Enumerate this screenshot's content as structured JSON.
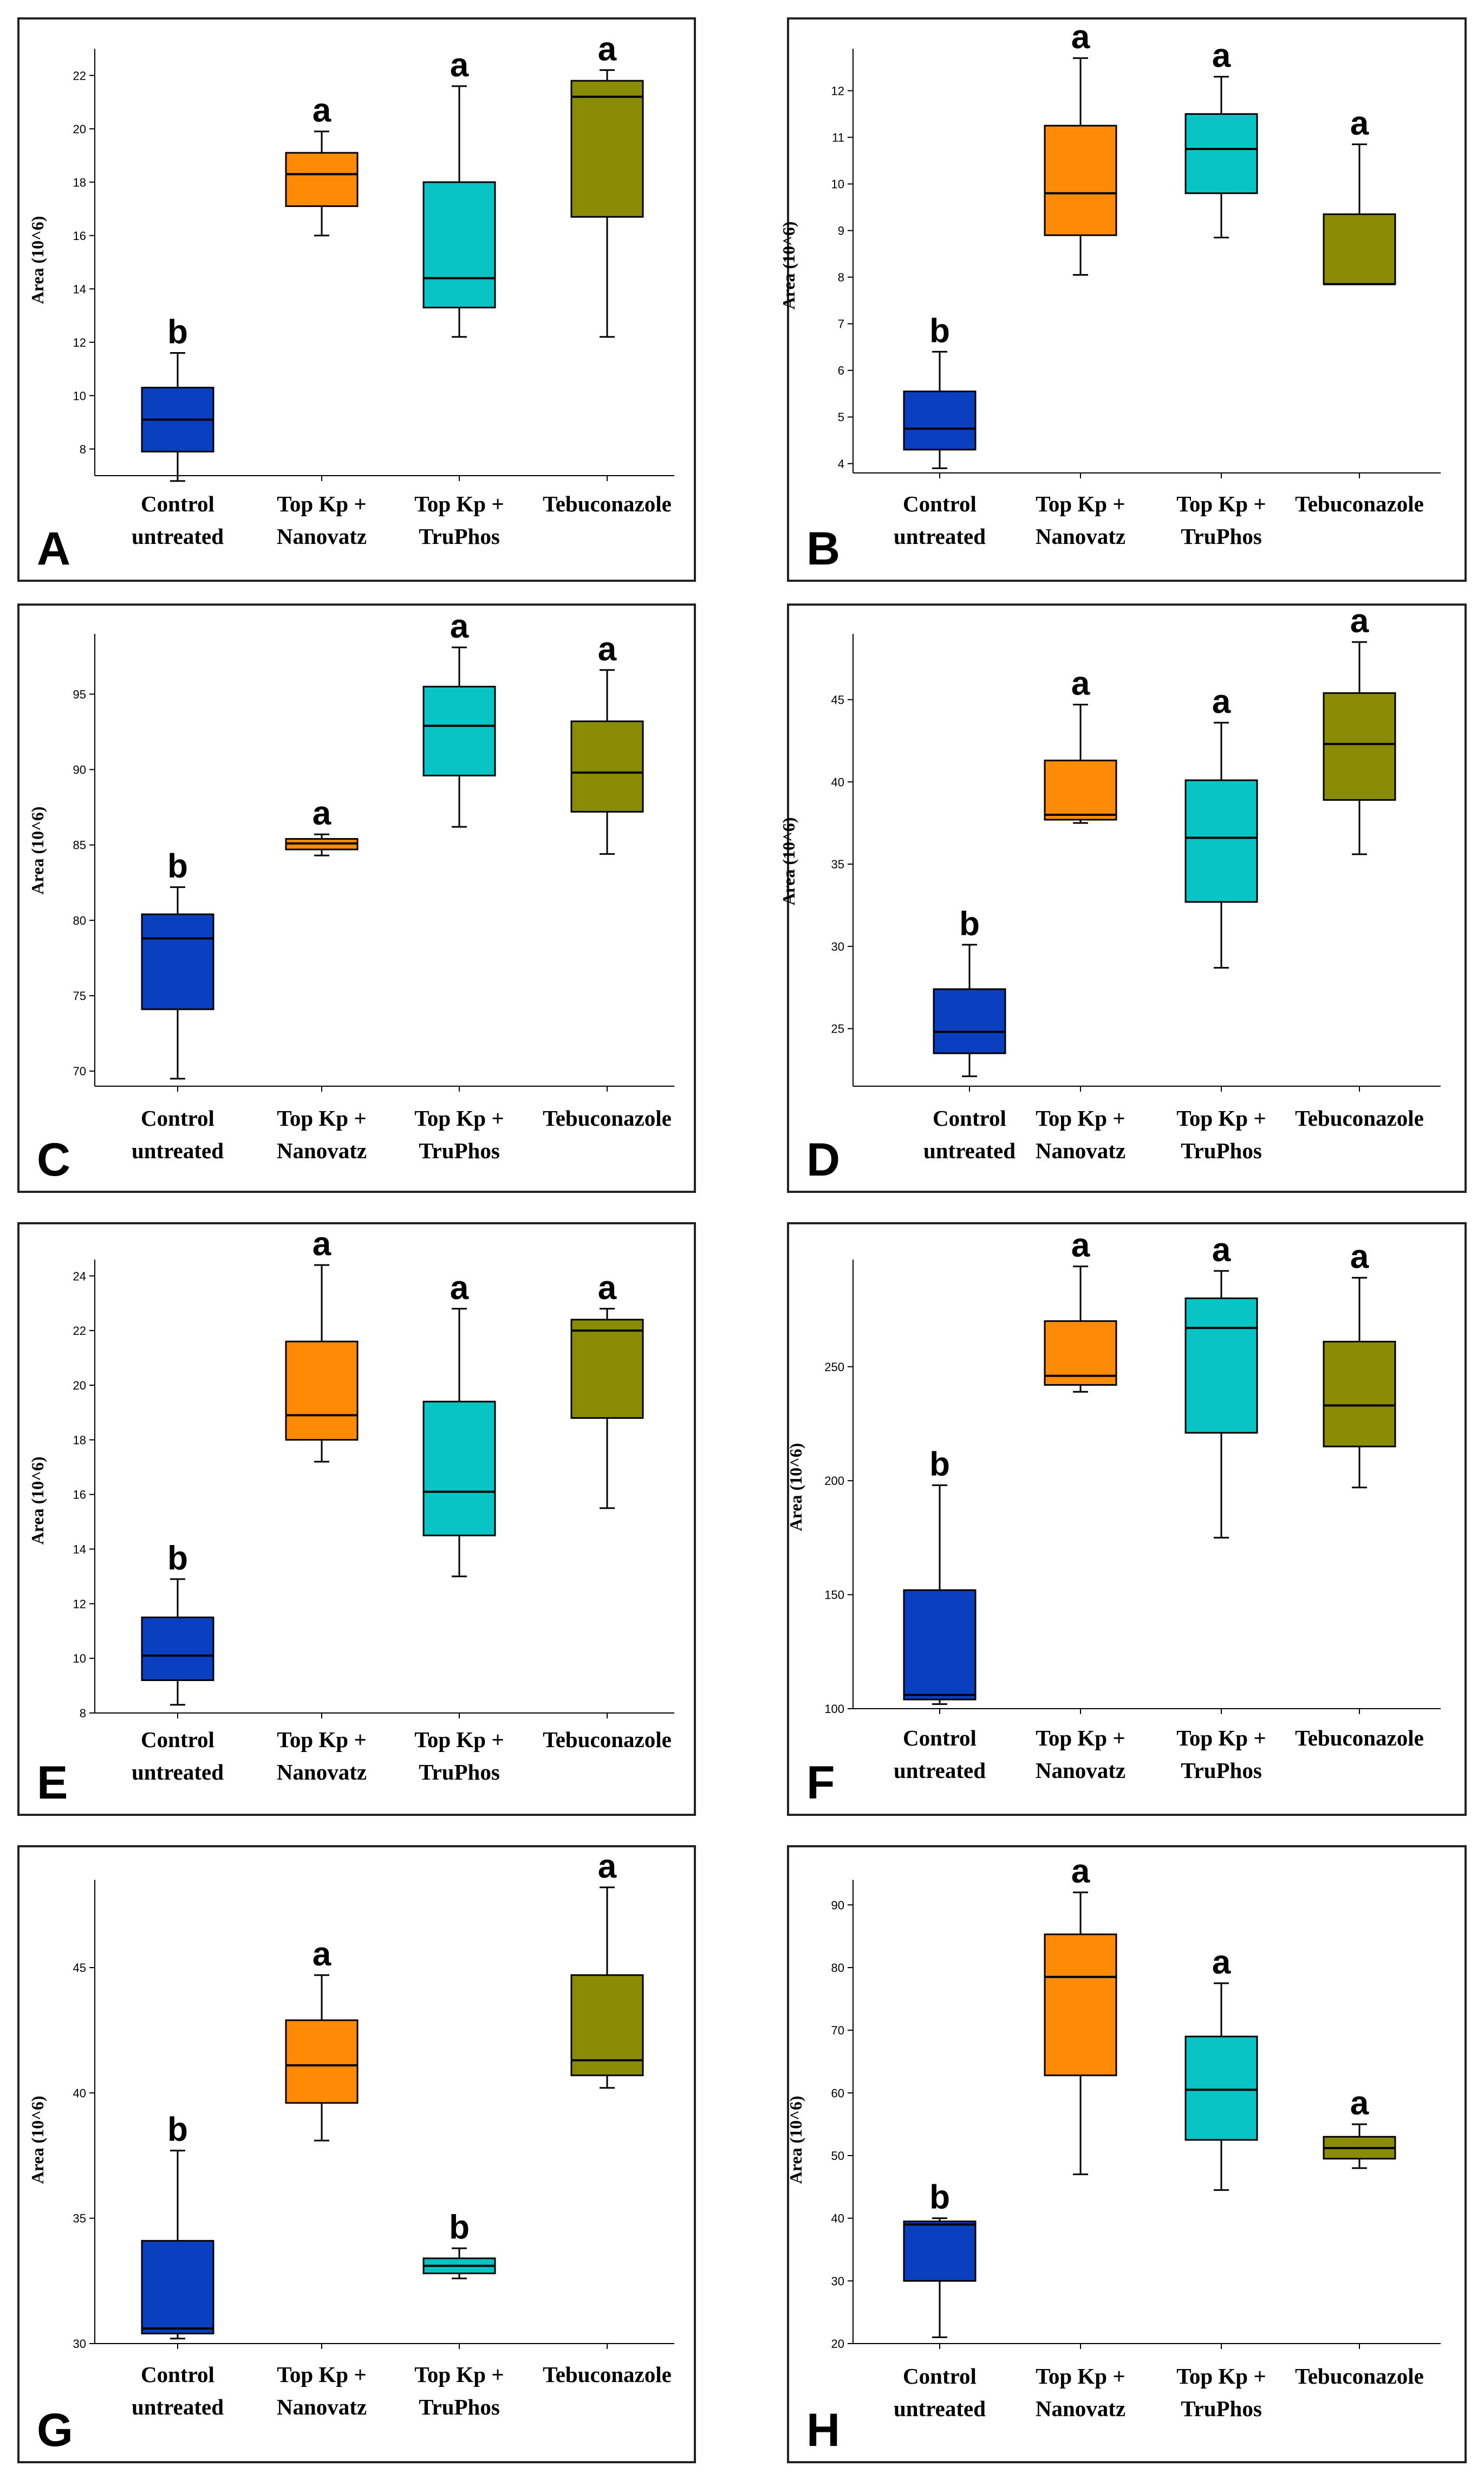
{
  "figure": {
    "categories": [
      {
        "line1": "Control",
        "line2": "untreated"
      },
      {
        "line1": "Top Kp +",
        "line2": "Nanovatz"
      },
      {
        "line1": "Top Kp +",
        "line2": "TruPhos"
      },
      {
        "line1": "Tebuconazole",
        "line2": ""
      }
    ],
    "colors": [
      "#0a3fbf",
      "#ff8a05",
      "#08c4c4",
      "#8a8c06"
    ]
  },
  "chart_data": [
    {
      "panel": "A",
      "type": "box",
      "ylabel": "Area (10^6)",
      "ylim": [
        7,
        23
      ],
      "yticks": [
        8,
        10,
        12,
        14,
        16,
        18,
        20,
        22
      ],
      "boxes": [
        {
          "min": 6.8,
          "q1": 7.9,
          "median": 9.1,
          "q3": 10.3,
          "max": 11.6,
          "letter": "b"
        },
        {
          "min": 16.0,
          "q1": 17.1,
          "median": 18.3,
          "q3": 19.1,
          "max": 19.9,
          "letter": "a"
        },
        {
          "min": 12.2,
          "q1": 13.3,
          "median": 14.4,
          "q3": 18.0,
          "max": 21.6,
          "letter": "a"
        },
        {
          "min": 12.2,
          "q1": 16.7,
          "median": 21.2,
          "q3": 21.8,
          "max": 22.2,
          "letter": "a"
        }
      ]
    },
    {
      "panel": "B",
      "type": "box",
      "ylabel": "Area (10^6)",
      "ylim": [
        3.8,
        12.9
      ],
      "yticks": [
        4,
        5,
        6,
        7,
        8,
        9,
        10,
        11,
        12
      ],
      "boxes": [
        {
          "min": 3.9,
          "q1": 4.3,
          "median": 4.75,
          "q3": 5.55,
          "max": 6.4,
          "letter": "b"
        },
        {
          "min": 8.05,
          "q1": 8.9,
          "median": 9.8,
          "q3": 11.25,
          "max": 12.7,
          "letter": "a"
        },
        {
          "min": 8.85,
          "q1": 9.8,
          "median": 10.75,
          "q3": 11.5,
          "max": 12.3,
          "letter": "a"
        },
        {
          "min": 7.85,
          "q1": 7.85,
          "median": 7.85,
          "q3": 9.35,
          "max": 10.85,
          "letter": "a"
        }
      ]
    },
    {
      "panel": "C",
      "type": "box",
      "ylabel": "Area (10^6)",
      "ylim": [
        69,
        99
      ],
      "yticks": [
        70,
        75,
        80,
        85,
        90,
        95
      ],
      "boxes": [
        {
          "min": 69.5,
          "q1": 74.1,
          "median": 78.8,
          "q3": 80.4,
          "max": 82.2,
          "letter": "b"
        },
        {
          "min": 84.3,
          "q1": 84.7,
          "median": 85.1,
          "q3": 85.4,
          "max": 85.7,
          "letter": "a"
        },
        {
          "min": 86.2,
          "q1": 89.6,
          "median": 92.9,
          "q3": 95.5,
          "max": 98.1,
          "letter": "a"
        },
        {
          "min": 84.4,
          "q1": 87.2,
          "median": 89.8,
          "q3": 93.2,
          "max": 96.6,
          "letter": "a"
        }
      ]
    },
    {
      "panel": "D",
      "type": "box",
      "ylabel": "Area (10^6)",
      "ylim": [
        21.5,
        49
      ],
      "yticks": [
        25,
        30,
        35,
        40,
        45
      ],
      "boxes": [
        {
          "min": 22.1,
          "q1": 23.5,
          "median": 24.8,
          "q3": 27.4,
          "max": 30.1,
          "letter": "b"
        },
        {
          "min": 37.5,
          "q1": 37.7,
          "median": 38.0,
          "q3": 41.3,
          "max": 44.7,
          "letter": "a"
        },
        {
          "min": 28.7,
          "q1": 32.7,
          "median": 36.6,
          "q3": 40.1,
          "max": 43.6,
          "letter": "a"
        },
        {
          "min": 35.6,
          "q1": 38.9,
          "median": 42.3,
          "q3": 45.4,
          "max": 48.5,
          "letter": "a"
        }
      ]
    },
    {
      "panel": "E",
      "type": "box",
      "ylabel": "Area (10^6)",
      "ylim": [
        8,
        24.6
      ],
      "yticks": [
        8,
        10,
        12,
        14,
        16,
        18,
        20,
        22,
        24
      ],
      "boxes": [
        {
          "min": 8.3,
          "q1": 9.2,
          "median": 10.1,
          "q3": 11.5,
          "max": 12.9,
          "letter": "b"
        },
        {
          "min": 17.2,
          "q1": 18.0,
          "median": 18.9,
          "q3": 21.6,
          "max": 24.4,
          "letter": "a"
        },
        {
          "min": 13.0,
          "q1": 14.5,
          "median": 16.1,
          "q3": 19.4,
          "max": 22.8,
          "letter": "a"
        },
        {
          "min": 15.5,
          "q1": 18.8,
          "median": 22.0,
          "q3": 22.4,
          "max": 22.8,
          "letter": "a"
        }
      ]
    },
    {
      "panel": "F",
      "type": "box",
      "ylabel": "Area (10^6)",
      "ylim": [
        100,
        297
      ],
      "yticks": [
        100,
        150,
        200,
        250
      ],
      "boxes": [
        {
          "min": 102,
          "q1": 104,
          "median": 106,
          "q3": 152,
          "max": 198,
          "letter": "b"
        },
        {
          "min": 239,
          "q1": 242,
          "median": 246,
          "q3": 270,
          "max": 294,
          "letter": "a"
        },
        {
          "min": 175,
          "q1": 221,
          "median": 267,
          "q3": 280,
          "max": 292,
          "letter": "a"
        },
        {
          "min": 197,
          "q1": 215,
          "median": 233,
          "q3": 261,
          "max": 289,
          "letter": "a"
        }
      ]
    },
    {
      "panel": "G",
      "type": "box",
      "ylabel": "Area (10^6)",
      "ylim": [
        30,
        48.5
      ],
      "yticks": [
        30,
        35,
        40,
        45
      ],
      "boxes": [
        {
          "min": 30.2,
          "q1": 30.4,
          "median": 30.6,
          "q3": 34.1,
          "max": 37.7,
          "letter": "b"
        },
        {
          "min": 38.1,
          "q1": 39.6,
          "median": 41.1,
          "q3": 42.9,
          "max": 44.7,
          "letter": "a"
        },
        {
          "min": 32.6,
          "q1": 32.8,
          "median": 33.1,
          "q3": 33.4,
          "max": 33.8,
          "letter": "b"
        },
        {
          "min": 40.2,
          "q1": 40.7,
          "median": 41.3,
          "q3": 44.7,
          "max": 48.2,
          "letter": "a"
        }
      ]
    },
    {
      "panel": "H",
      "type": "box",
      "ylabel": "Area (10^6)",
      "ylim": [
        20,
        94
      ],
      "yticks": [
        20,
        30,
        40,
        50,
        60,
        70,
        80,
        90
      ],
      "boxes": [
        {
          "min": 21,
          "q1": 30,
          "median": 39,
          "q3": 39.5,
          "max": 40,
          "letter": "b"
        },
        {
          "min": 47,
          "q1": 62.8,
          "median": 78.5,
          "q3": 85.3,
          "max": 92,
          "letter": "a"
        },
        {
          "min": 44.5,
          "q1": 52.5,
          "median": 60.5,
          "q3": 69,
          "max": 77.5,
          "letter": "a"
        },
        {
          "min": 48,
          "q1": 49.5,
          "median": 51.2,
          "q3": 53,
          "max": 55,
          "letter": "a"
        }
      ]
    }
  ]
}
